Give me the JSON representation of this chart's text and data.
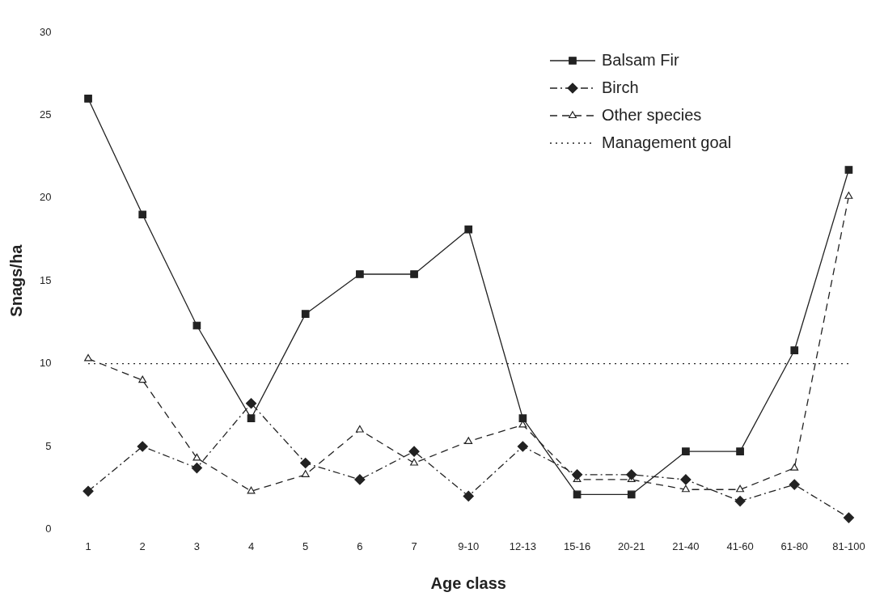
{
  "chart_data": {
    "type": "line",
    "xlabel": "Age class",
    "ylabel": "Snags/ha",
    "categories": [
      "1",
      "2",
      "3",
      "4",
      "5",
      "6",
      "7",
      "9-10",
      "12-13",
      "15-16",
      "20-21",
      "21-40",
      "41-60",
      "61-80",
      "81-100"
    ],
    "ylim": [
      0,
      30
    ],
    "yticks": [
      0,
      5,
      10,
      15,
      20,
      25,
      30
    ],
    "grid": false,
    "legend": "top right",
    "series": [
      {
        "name": "Balsam Fir",
        "color": "#222222",
        "marker": "square",
        "line_style": "solid",
        "values": [
          26.0,
          19.0,
          12.3,
          6.7,
          13.0,
          15.4,
          15.4,
          18.1,
          6.7,
          2.1,
          2.1,
          4.7,
          4.7,
          10.8,
          21.7
        ]
      },
      {
        "name": "Birch",
        "color": "#222222",
        "marker": "diamond",
        "line_style": "dashdot",
        "values": [
          2.3,
          5.0,
          3.7,
          7.6,
          4.0,
          3.0,
          4.7,
          2.0,
          5.0,
          3.3,
          3.3,
          3.0,
          1.7,
          2.7,
          0.7
        ]
      },
      {
        "name": "Other species",
        "color": "#222222",
        "marker": "triangle",
        "line_style": "dashed",
        "values": [
          10.3,
          9.0,
          4.3,
          2.3,
          3.3,
          6.0,
          4.0,
          5.3,
          6.3,
          3.0,
          3.0,
          2.4,
          2.4,
          3.7,
          20.1
        ]
      },
      {
        "name": "Management goal",
        "color": "#222222",
        "marker": "none",
        "line_style": "dotted",
        "values": [
          10,
          10,
          10,
          10,
          10,
          10,
          10,
          10,
          10,
          10,
          10,
          10,
          10,
          10,
          10
        ]
      }
    ]
  }
}
